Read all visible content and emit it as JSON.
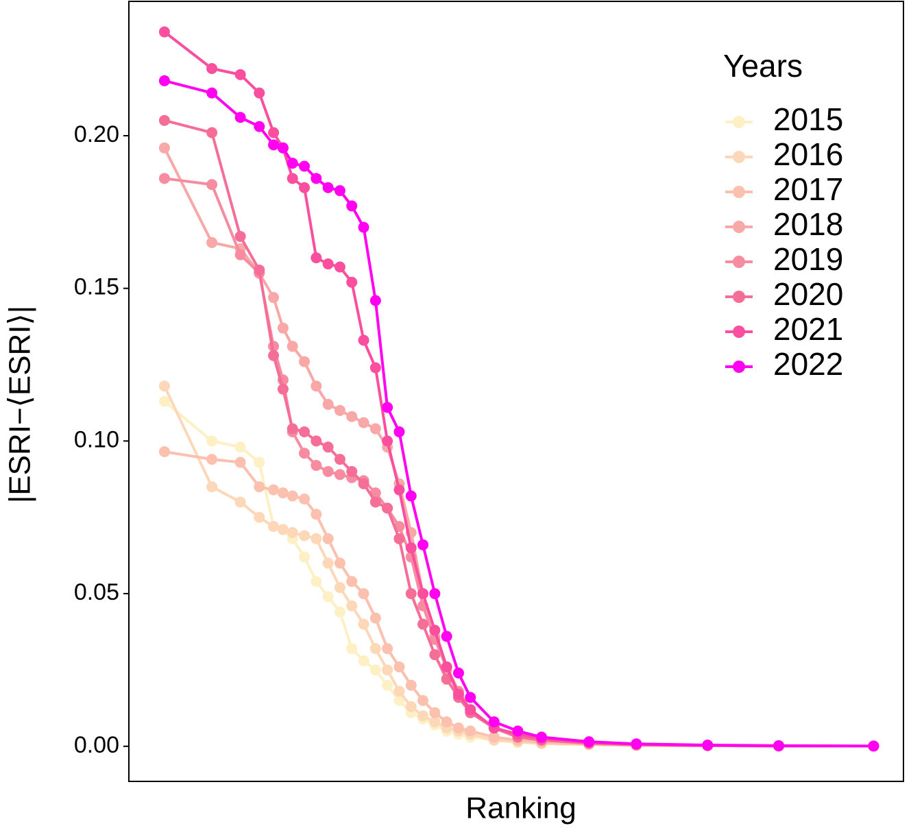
{
  "chart_data": {
    "type": "line",
    "x_label": "Ranking",
    "y_label": "|ESRI−⟨ESRI⟩|",
    "legend_title": "Years",
    "legend_position": "top-right",
    "x": [
      1,
      21,
      33,
      41,
      47,
      51,
      55,
      60,
      65,
      70,
      75,
      80,
      85,
      90,
      95,
      100,
      105,
      110,
      115,
      120,
      125,
      130,
      140,
      150,
      160,
      180,
      200,
      230,
      260,
      300
    ],
    "xlim": [
      -14,
      312.6
    ],
    "ylim": [
      -0.0115,
      0.244
    ],
    "yticks": [
      {
        "value": 0,
        "label": "0.00"
      },
      {
        "value": 0.05,
        "label": "0.05"
      },
      {
        "value": 0.1,
        "label": "0.10"
      },
      {
        "value": 0.15,
        "label": "0.15"
      },
      {
        "value": 0.2,
        "label": "0.20"
      }
    ],
    "series": [
      {
        "name": "2015",
        "color": "#fdf0c4",
        "values": [
          0.113,
          0.1,
          0.098,
          0.093,
          0.072,
          0.071,
          0.068,
          0.062,
          0.054,
          0.049,
          0.044,
          0.032,
          0.028,
          0.025,
          0.02,
          0.015,
          0.011,
          0.009,
          0.007,
          0.005,
          0.004,
          0.003,
          0.002,
          0.0012,
          0.0008,
          0.0005,
          0.0003,
          0.0002,
          0.0001,
          5e-05
        ]
      },
      {
        "name": "2016",
        "color": "#fcd8b8",
        "values": [
          0.118,
          0.085,
          0.08,
          0.075,
          0.072,
          0.071,
          0.07,
          0.069,
          0.068,
          0.06,
          0.052,
          0.046,
          0.04,
          0.032,
          0.025,
          0.018,
          0.013,
          0.01,
          0.008,
          0.006,
          0.005,
          0.004,
          0.002,
          0.0015,
          0.001,
          0.0006,
          0.0003,
          0.0002,
          0.0001,
          5e-05
        ]
      },
      {
        "name": "2017",
        "color": "#fbc0ae",
        "values": [
          0.0965,
          0.094,
          0.093,
          0.085,
          0.084,
          0.083,
          0.082,
          0.081,
          0.076,
          0.068,
          0.06,
          0.054,
          0.05,
          0.042,
          0.032,
          0.026,
          0.02,
          0.015,
          0.011,
          0.008,
          0.006,
          0.005,
          0.003,
          0.002,
          0.0012,
          0.0006,
          0.0003,
          0.0002,
          0.0001,
          5e-05
        ]
      },
      {
        "name": "2018",
        "color": "#f9a8a8",
        "values": [
          0.196,
          0.165,
          0.163,
          0.155,
          0.147,
          0.137,
          0.131,
          0.126,
          0.118,
          0.112,
          0.11,
          0.108,
          0.106,
          0.104,
          0.098,
          0.086,
          0.07,
          0.05,
          0.036,
          0.025,
          0.017,
          0.012,
          0.006,
          0.003,
          0.002,
          0.001,
          0.0005,
          0.0002,
          0.0001,
          5e-05
        ]
      },
      {
        "name": "2019",
        "color": "#f78ca0",
        "values": [
          0.186,
          0.184,
          0.161,
          0.155,
          0.131,
          0.12,
          0.103,
          0.096,
          0.092,
          0.09,
          0.089,
          0.088,
          0.087,
          0.083,
          0.078,
          0.072,
          0.062,
          0.046,
          0.035,
          0.026,
          0.018,
          0.012,
          0.006,
          0.003,
          0.002,
          0.001,
          0.0005,
          0.0002,
          0.0001,
          5e-05
        ]
      },
      {
        "name": "2020",
        "color": "#f56e98",
        "values": [
          0.205,
          0.201,
          0.167,
          0.156,
          0.128,
          0.117,
          0.104,
          0.103,
          0.1,
          0.098,
          0.094,
          0.09,
          0.086,
          0.08,
          0.078,
          0.068,
          0.05,
          0.04,
          0.03,
          0.022,
          0.016,
          0.011,
          0.006,
          0.003,
          0.002,
          0.001,
          0.0005,
          0.0002,
          0.0001,
          5e-05
        ]
      },
      {
        "name": "2021",
        "color": "#fa4f9e",
        "values": [
          0.234,
          0.222,
          0.22,
          0.214,
          0.201,
          0.196,
          0.186,
          0.183,
          0.16,
          0.158,
          0.157,
          0.152,
          0.133,
          0.124,
          0.1,
          0.084,
          0.065,
          0.05,
          0.038,
          0.026,
          0.017,
          0.012,
          0.006,
          0.004,
          0.0025,
          0.0012,
          0.0006,
          0.0003,
          0.0001,
          5e-05
        ]
      },
      {
        "name": "2022",
        "color": "#ff00f0",
        "values": [
          0.218,
          0.214,
          0.206,
          0.203,
          0.197,
          0.196,
          0.191,
          0.19,
          0.186,
          0.183,
          0.182,
          0.177,
          0.17,
          0.146,
          0.111,
          0.103,
          0.082,
          0.066,
          0.05,
          0.036,
          0.024,
          0.016,
          0.008,
          0.005,
          0.003,
          0.0015,
          0.0008,
          0.0004,
          0.0002,
          0.0001
        ]
      }
    ]
  }
}
